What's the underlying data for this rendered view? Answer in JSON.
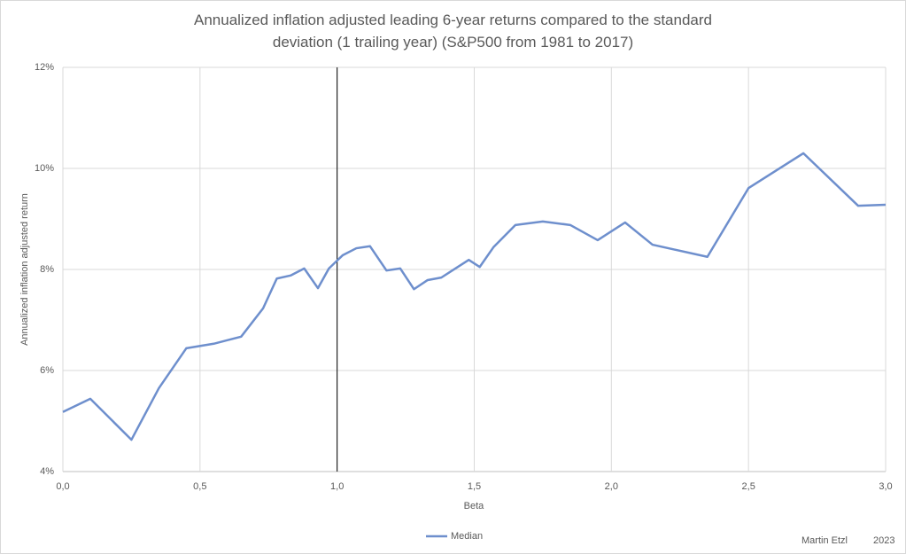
{
  "chart_data": {
    "type": "line",
    "title": "Annualized inflation adjusted leading 6-year returns compared to the standard deviation (1 trailing year) (S&P500 from 1981 to 2017)",
    "x_label": "Beta",
    "y_label": "Annualized inflation adjusted return",
    "annotations": [
      "Martin Etzl",
      "2023"
    ],
    "x": [
      0,
      0.1,
      0.25,
      0.35,
      0.45,
      0.55,
      0.65,
      0.73,
      0.78,
      0.83,
      0.88,
      0.93,
      0.97,
      1.02,
      1.07,
      1.12,
      1.18,
      1.23,
      1.28,
      1.33,
      1.38,
      1.48,
      1.52,
      1.57,
      1.65,
      1.75,
      1.85,
      1.95,
      2.05,
      2.15,
      2.35,
      2.5,
      2.7,
      2.9,
      3.0
    ],
    "series": [
      {
        "name": "Median",
        "color": "#6e8fcd",
        "values": [
          5.18,
          5.44,
          4.63,
          5.65,
          6.44,
          6.53,
          6.67,
          7.23,
          7.82,
          7.88,
          8.02,
          7.63,
          8.02,
          8.28,
          8.42,
          8.46,
          7.98,
          8.02,
          7.61,
          7.79,
          7.84,
          8.19,
          8.05,
          8.44,
          8.88,
          8.95,
          8.88,
          8.58,
          8.93,
          8.49,
          8.25,
          9.61,
          10.3,
          9.26,
          9.28
        ]
      }
    ],
    "xlim": [
      0,
      3
    ],
    "xticks": [
      {
        "value": 0,
        "label": "0,0"
      },
      {
        "value": 0.5,
        "label": "0,5"
      },
      {
        "value": 1,
        "label": "1,0"
      },
      {
        "value": 1.5,
        "label": "1,5"
      },
      {
        "value": 2,
        "label": "2,0"
      },
      {
        "value": 2.5,
        "label": "2,5"
      },
      {
        "value": 3,
        "label": "3,0"
      }
    ],
    "ylim": [
      4,
      12
    ],
    "yticks": [
      {
        "value": 4,
        "label": "4%"
      },
      {
        "value": 6,
        "label": "6%"
      },
      {
        "value": 8,
        "label": "8%"
      },
      {
        "value": 10,
        "label": "10%"
      },
      {
        "value": 12,
        "label": "12%"
      }
    ],
    "vline": 1,
    "grid": true,
    "legend": "bottom"
  }
}
